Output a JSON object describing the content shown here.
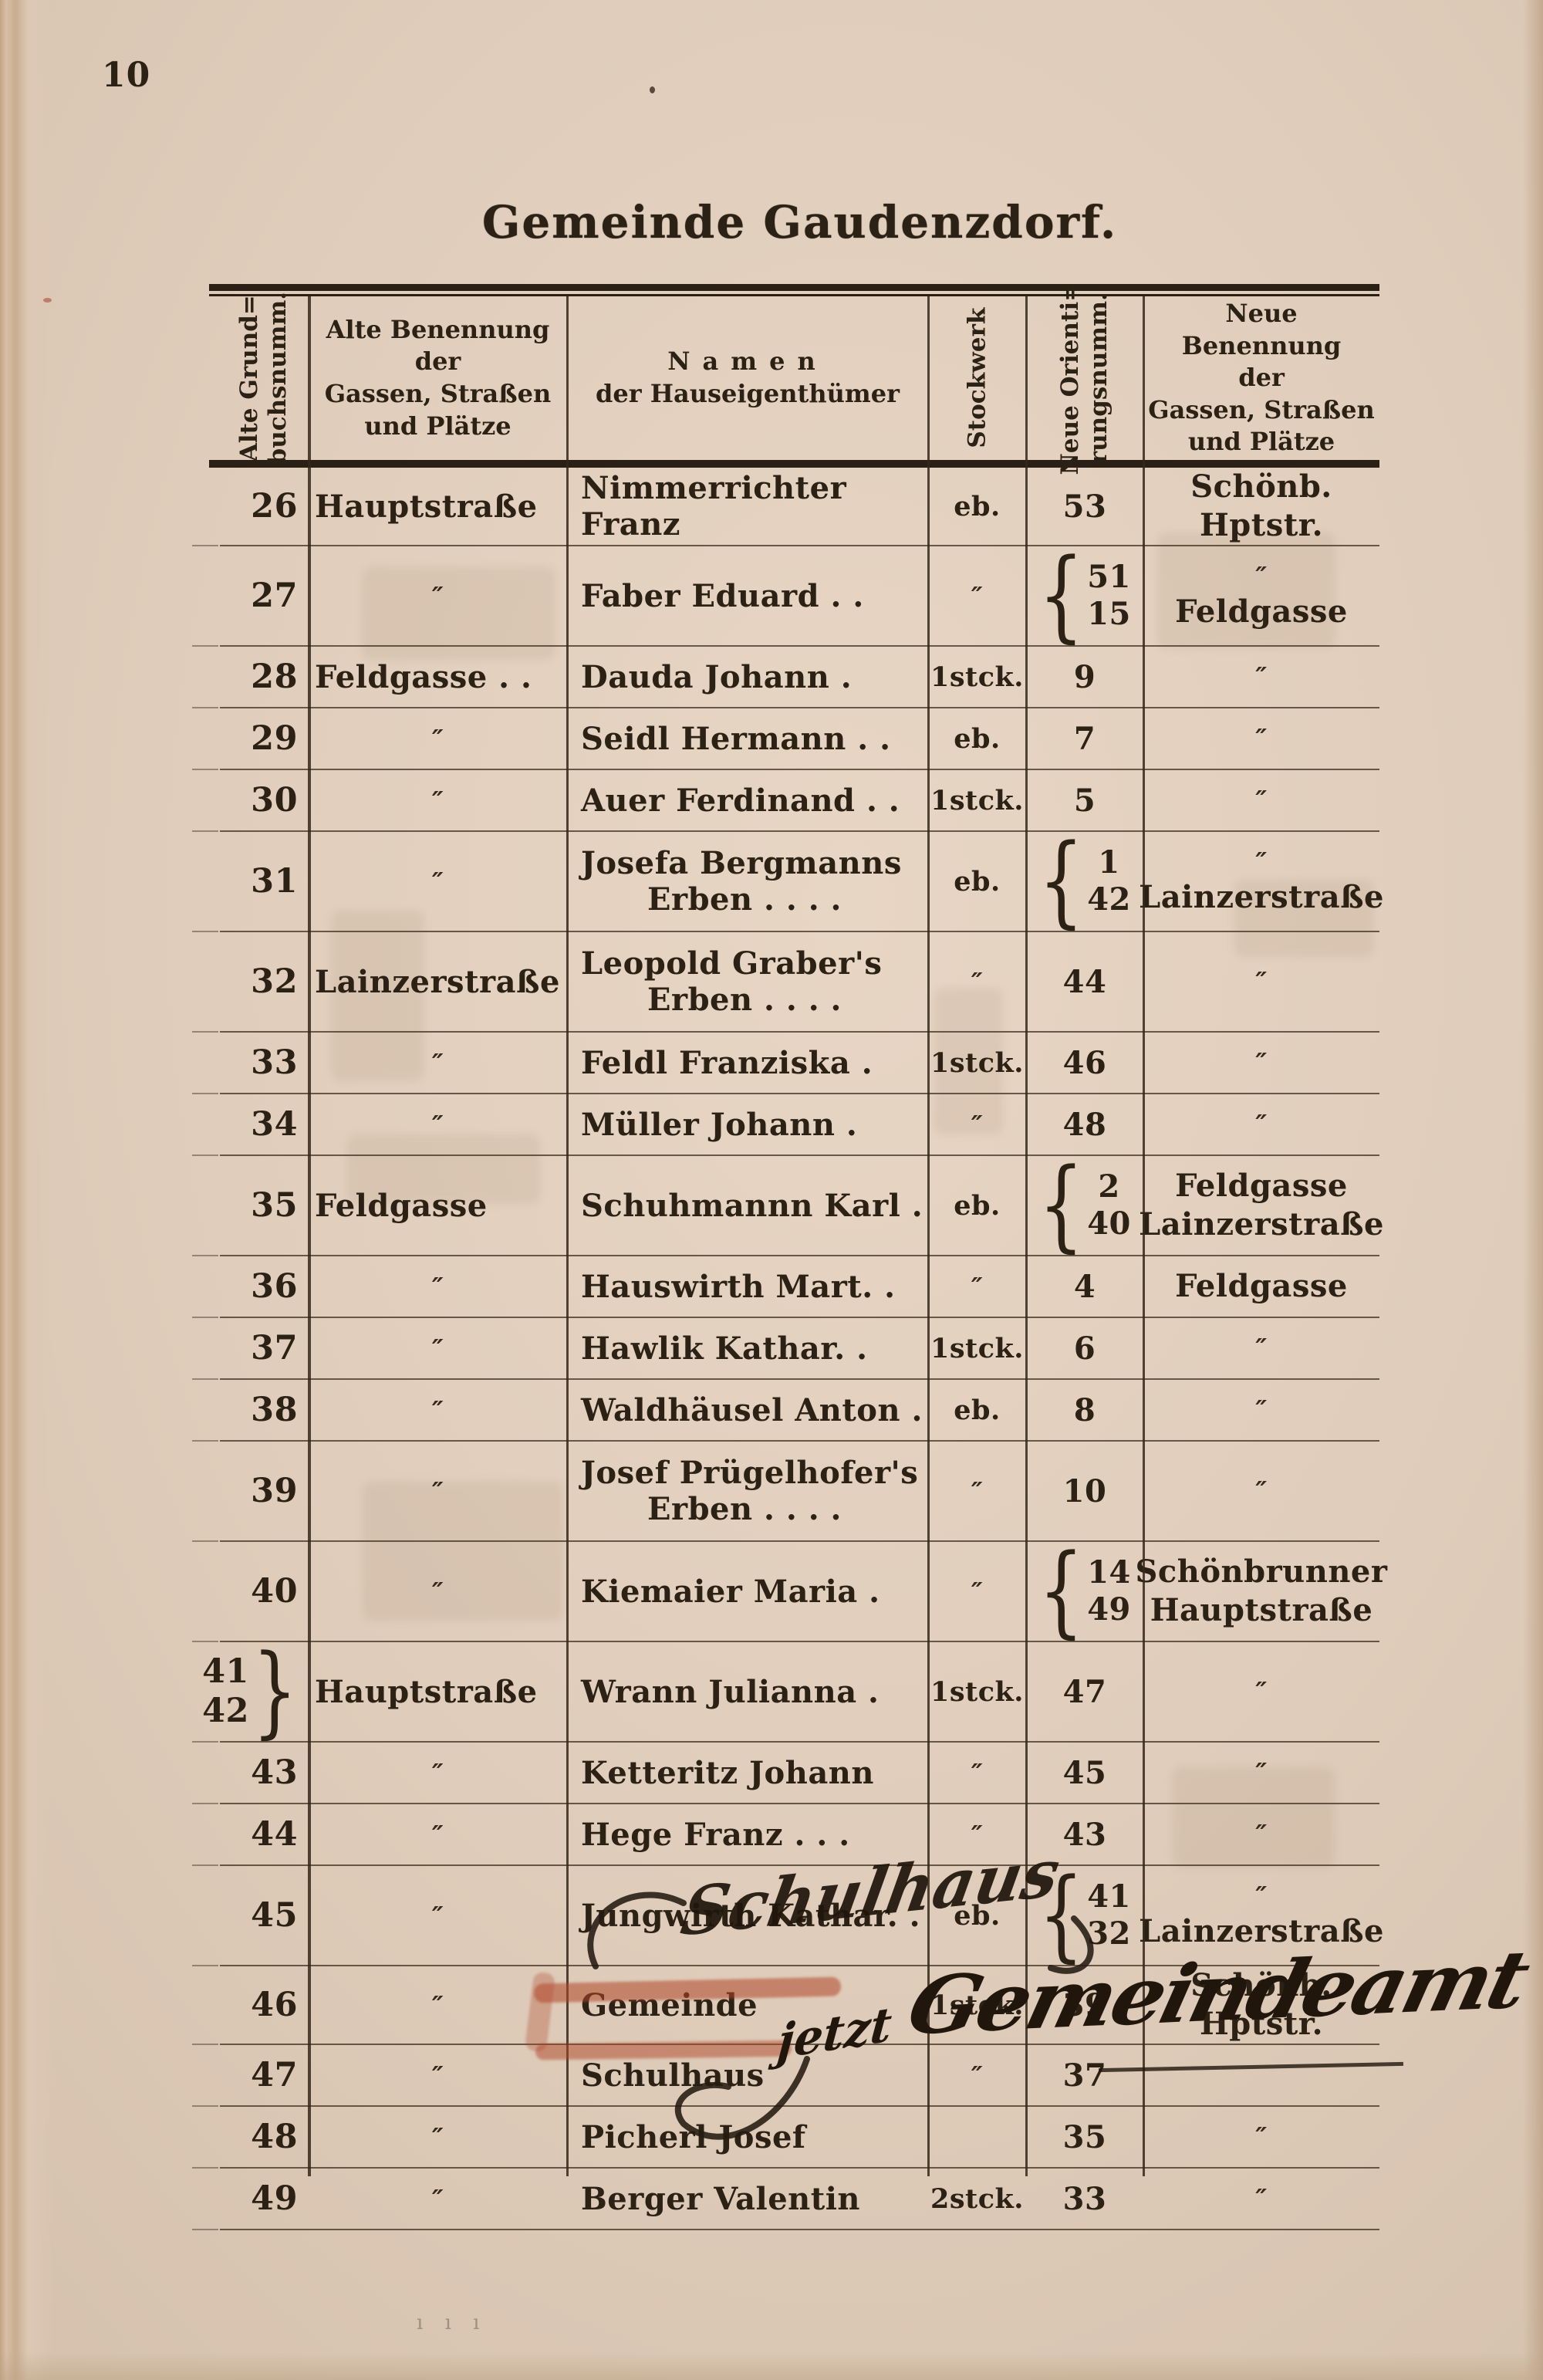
{
  "page": {
    "number": "10",
    "title": "Gemeinde Gaudenzdorf."
  },
  "table": {
    "headers": {
      "col1_lines": [
        "Alte Grund=",
        "buchsnumm."
      ],
      "col2_lines": [
        "Alte Benennung",
        "der",
        "Gassen, Straßen",
        "und Plätze"
      ],
      "col3_line1": "Namen",
      "col3_line2": "der Hauseigenthümer",
      "col4": "Stockwerk",
      "col5_lines": [
        "Neue Orienti=",
        "rungsnumm."
      ],
      "col6_lines": [
        "Neue Benennung",
        "der",
        "Gassen, Straßen",
        "und Plätze"
      ]
    },
    "ditto": "″",
    "rows": [
      {
        "num": [
          "26"
        ],
        "old": "Hauptstraße",
        "owner": [
          "Nimmerrichter Franz"
        ],
        "floor": "eb.",
        "orient": [
          "53"
        ],
        "new": [
          "Schönb. Hptstr."
        ]
      },
      {
        "num": [
          "27"
        ],
        "old": "″",
        "owner": [
          "Faber Eduard .   ."
        ],
        "floor": "″",
        "orient": [
          "51",
          "15"
        ],
        "new": [
          "″",
          "Feldgasse"
        ]
      },
      {
        "num": [
          "28"
        ],
        "old": "Feldgasse .   .",
        "owner": [
          "Dauda Johann    ."
        ],
        "floor": "1stck.",
        "orient": [
          "9"
        ],
        "new": [
          "″"
        ]
      },
      {
        "num": [
          "29"
        ],
        "old": "″",
        "owner": [
          "Seidl Hermann .   ."
        ],
        "floor": "eb.",
        "orient": [
          "7"
        ],
        "new": [
          "″"
        ]
      },
      {
        "num": [
          "30"
        ],
        "old": "″",
        "owner": [
          "Auer Ferdinand .   ."
        ],
        "floor": "1stck.",
        "orient": [
          "5"
        ],
        "new": [
          "″"
        ]
      },
      {
        "num": [
          "31"
        ],
        "old": "″",
        "owner": [
          "Josefa Bergmanns",
          "Erben .   .   .   ."
        ],
        "floor": "eb.",
        "orient": [
          "1",
          "42"
        ],
        "new": [
          "″",
          "Lainzerstraße"
        ]
      },
      {
        "num": [
          "32"
        ],
        "old": "Lainzerstraße",
        "owner": [
          "Leopold Graber's",
          "Erben .   .   .   ."
        ],
        "floor": "″",
        "orient": [
          "44"
        ],
        "new": [
          "″"
        ]
      },
      {
        "num": [
          "33"
        ],
        "old": "″",
        "owner": [
          "Feldl Franziska   ."
        ],
        "floor": "1stck.",
        "orient": [
          "46"
        ],
        "new": [
          "″"
        ]
      },
      {
        "num": [
          "34"
        ],
        "old": "″",
        "owner": [
          "Müller Johann      ."
        ],
        "floor": "″",
        "orient": [
          "48"
        ],
        "new": [
          "″"
        ]
      },
      {
        "num": [
          "35"
        ],
        "old": "Feldgasse",
        "owner": [
          "Schuhmannn Karl ."
        ],
        "floor": "eb.",
        "orient": [
          "2",
          "40"
        ],
        "new": [
          "Feldgasse",
          "Lainzerstraße"
        ]
      },
      {
        "num": [
          "36"
        ],
        "old": "″",
        "owner": [
          "Hauswirth Mart. ."
        ],
        "floor": "″",
        "orient": [
          "4"
        ],
        "new": [
          "Feldgasse"
        ]
      },
      {
        "num": [
          "37"
        ],
        "old": "″",
        "owner": [
          "Hawlik Kathar.    ."
        ],
        "floor": "1stck.",
        "orient": [
          "6"
        ],
        "new": [
          "″"
        ]
      },
      {
        "num": [
          "38"
        ],
        "old": "″",
        "owner": [
          "Waldhäusel Anton ."
        ],
        "floor": "eb.",
        "orient": [
          "8"
        ],
        "new": [
          "″"
        ]
      },
      {
        "num": [
          "39"
        ],
        "old": "″",
        "owner": [
          "Josef Prügelhofer's",
          "Erben .   .   .   ."
        ],
        "floor": "″",
        "orient": [
          "10"
        ],
        "new": [
          "″"
        ]
      },
      {
        "num": [
          "40"
        ],
        "old": "″",
        "owner": [
          "Kiemaier Maria    ."
        ],
        "floor": "″",
        "orient": [
          "14",
          "49"
        ],
        "new": [
          "Schönbrunner",
          "Hauptstraße"
        ]
      },
      {
        "num": [
          "41",
          "42"
        ],
        "old": "Hauptstraße",
        "owner": [
          "Wrann Julianna   ."
        ],
        "floor": "1stck.",
        "orient": [
          "47"
        ],
        "new": [
          "″"
        ]
      },
      {
        "num": [
          "43"
        ],
        "old": "″",
        "owner": [
          "Ketteritz Johann"
        ],
        "floor": "″",
        "orient": [
          "45"
        ],
        "new": [
          "″"
        ]
      },
      {
        "num": [
          "44"
        ],
        "old": "″",
        "owner": [
          "Hege Franz .   .   ."
        ],
        "floor": "″",
        "orient": [
          "43"
        ],
        "new": [
          "″"
        ]
      },
      {
        "num": [
          "45"
        ],
        "old": "″",
        "owner": [
          "Jungwirth Kathar. ."
        ],
        "floor": "eb.",
        "orient": [
          "41",
          "32"
        ],
        "new": [
          "″",
          "Lainzerstraße"
        ]
      },
      {
        "num": [
          "46"
        ],
        "old": "″",
        "owner": [
          "Gemeinde"
        ],
        "floor": "1stck.",
        "orient": [
          "39"
        ],
        "new": [
          "Schönb. Hptstr."
        ]
      },
      {
        "num": [
          "47"
        ],
        "old": "″",
        "owner": [
          "Schulhaus"
        ],
        "floor": "″",
        "orient": [
          "37"
        ],
        "new": [
          ""
        ]
      },
      {
        "num": [
          "48"
        ],
        "old": "″",
        "owner": [
          "Picherl Josef"
        ],
        "floor": "",
        "orient": [
          "35"
        ],
        "new": [
          "″"
        ]
      },
      {
        "num": [
          "49"
        ],
        "old": "″",
        "owner": [
          "Berger Valentin"
        ],
        "floor": "2stck.",
        "orient": [
          "33"
        ],
        "new": [
          "″"
        ]
      }
    ]
  },
  "annotations": {
    "handwritten_over_row46": "Schulhaus",
    "handwritten_jetzt": "jetzt",
    "handwritten_gemeindeamt": "Gemeindeamt",
    "red_pencil_color": "#b0472a",
    "ink_color": "#241a10"
  },
  "stray_marks": "ı ı ı"
}
